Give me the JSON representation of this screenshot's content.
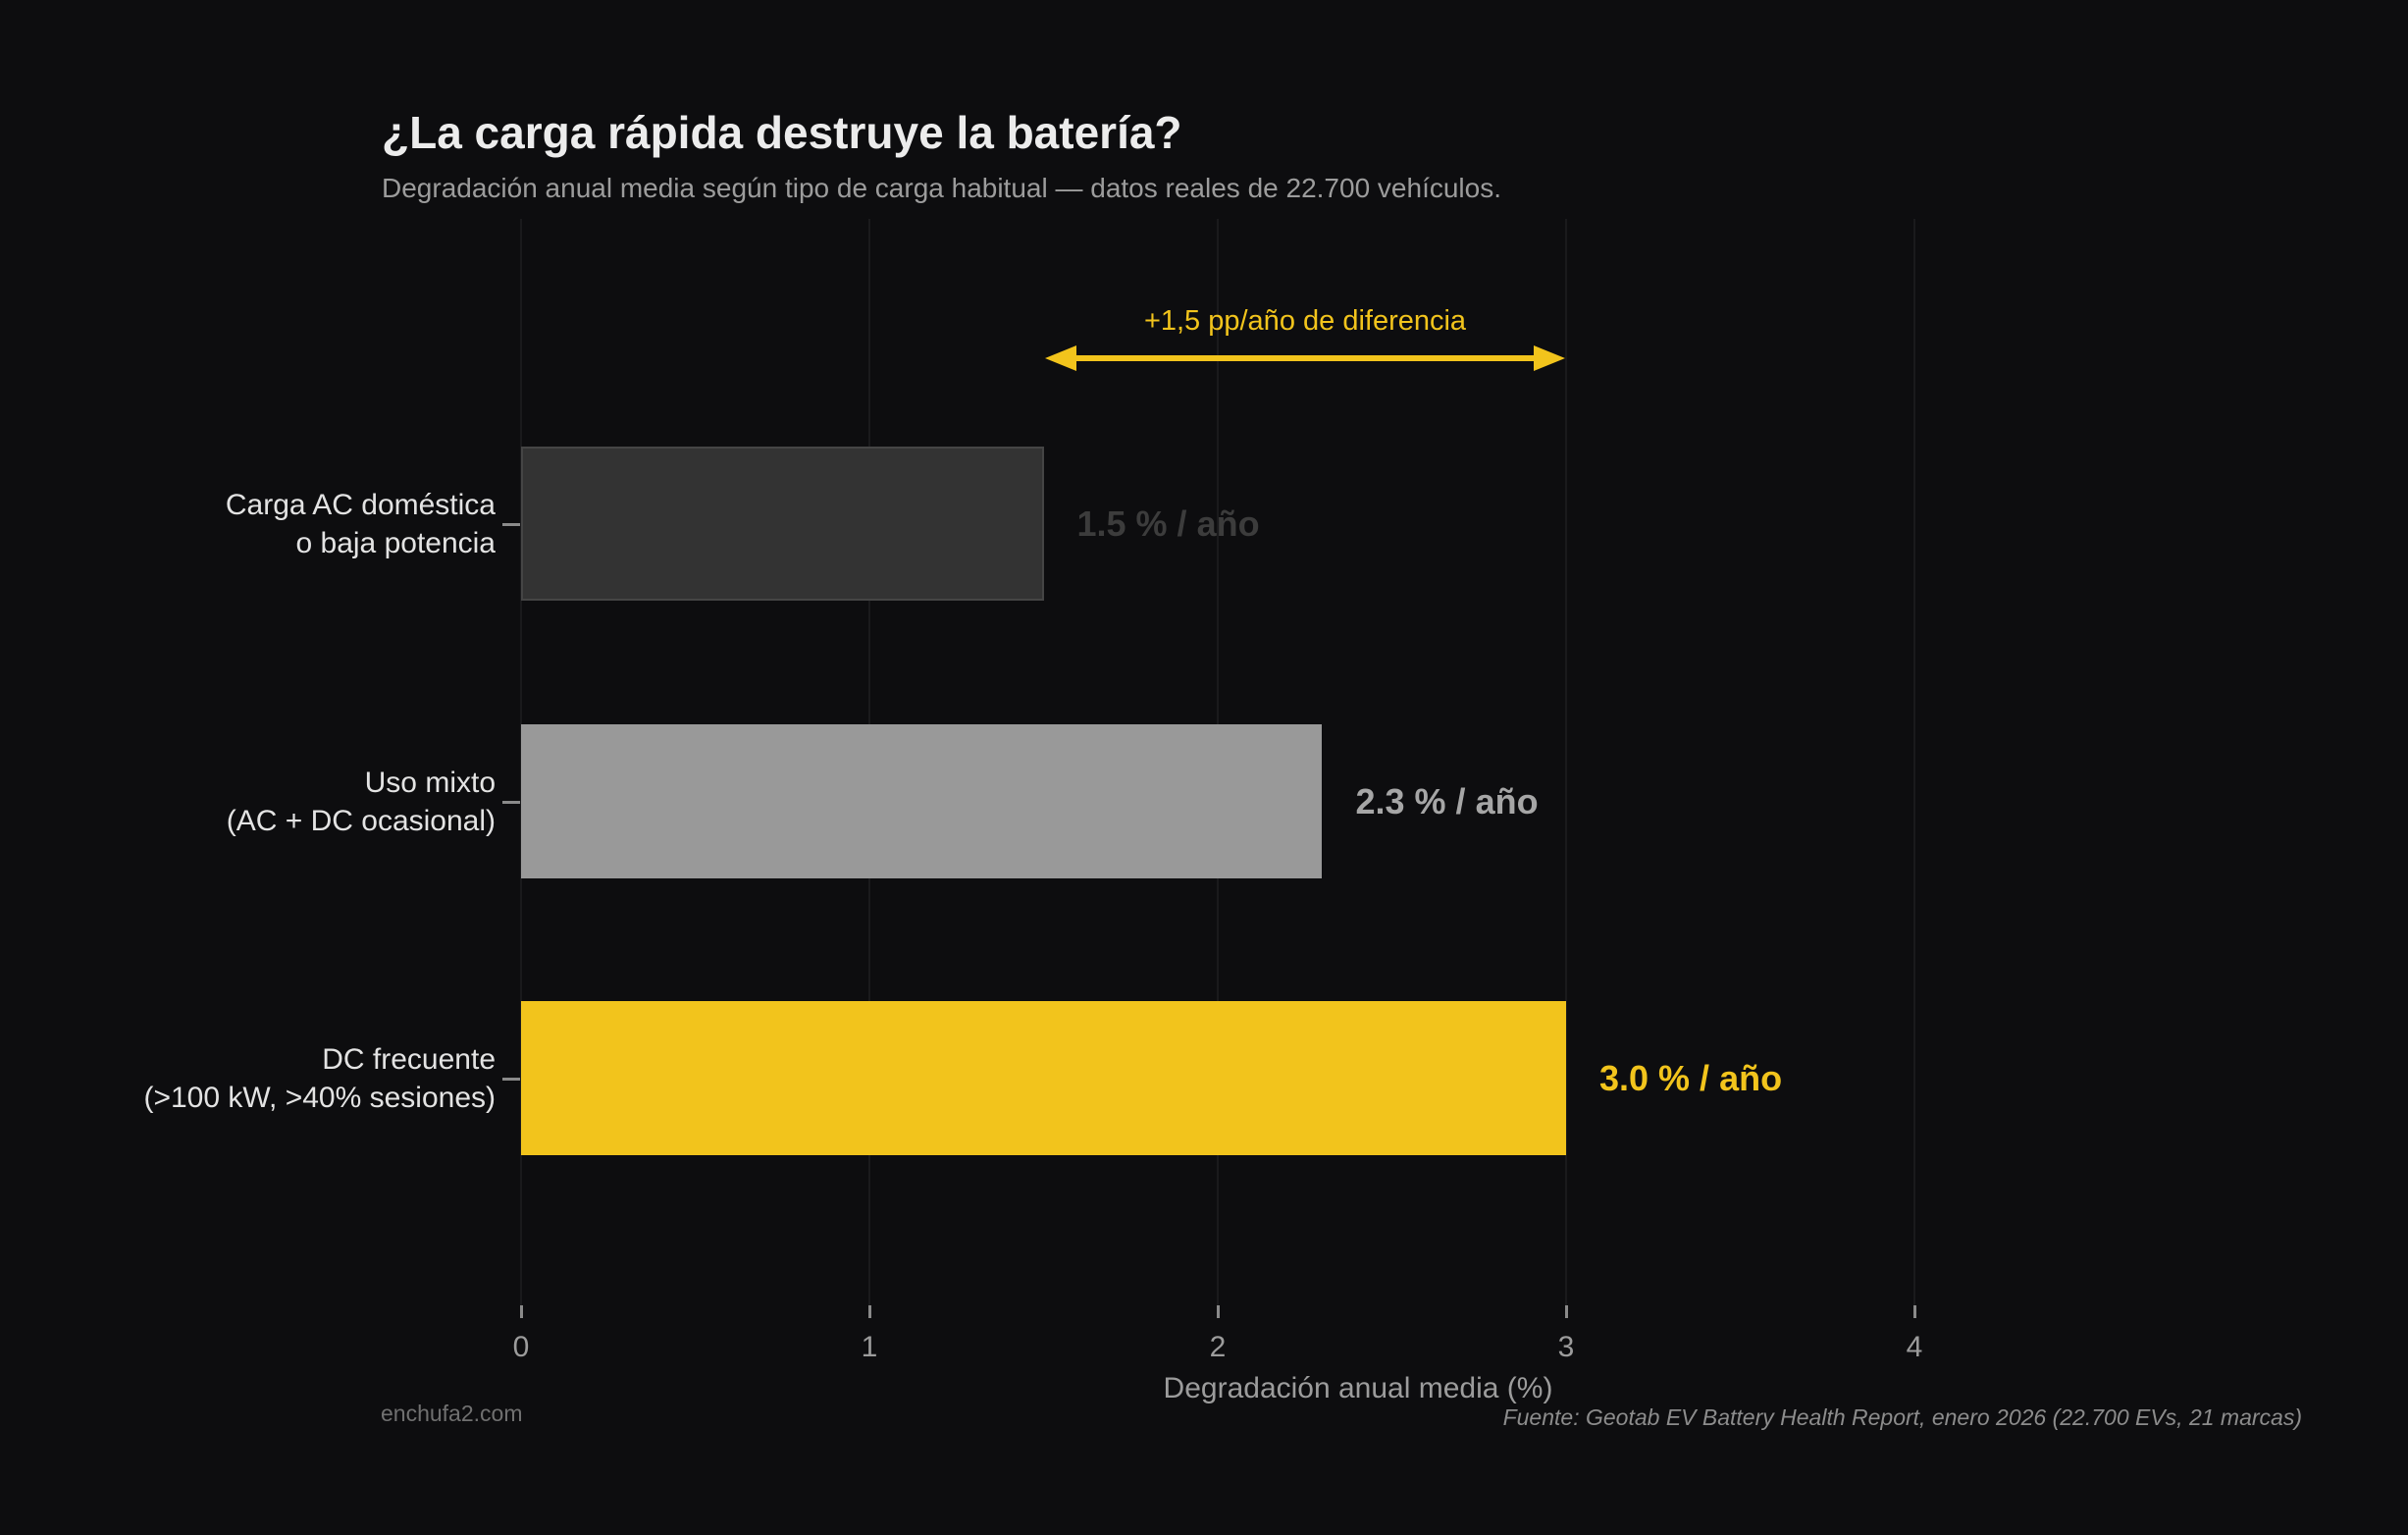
{
  "chart_data": {
    "type": "bar",
    "orientation": "horizontal",
    "title": "¿La carga rápida destruye la batería?",
    "subtitle": "Degradación anual media según tipo de carga habitual — datos reales de 22.700 vehículos.",
    "xlabel": "Degradación anual media (%)",
    "xticks": [
      "0",
      "1",
      "2",
      "3",
      "4"
    ],
    "xtick_values": [
      0,
      1,
      2,
      3,
      4
    ],
    "xlim": [
      0,
      4.3
    ],
    "grid": "vertical-major-only",
    "legend": "none",
    "rows": [
      {
        "label_lines": [
          "Carga AC doméstica",
          "o baja potencia"
        ],
        "value": 1.5,
        "value_label": "1.5 % / año",
        "fill": "#333333",
        "border": "#454545",
        "value_color": "#3c3c3c"
      },
      {
        "label_lines": [
          "Uso mixto",
          "(AC + DC ocasional)"
        ],
        "value": 2.3,
        "value_label": "2.3 % / año",
        "fill": "#999999",
        "border": "#999999",
        "value_color": "#a6a6a6"
      },
      {
        "label_lines": [
          "DC frecuente",
          "(>100 kW, >40% sesiones)"
        ],
        "value": 3.0,
        "value_label": "3.0 % / año",
        "fill": "#f2c41c",
        "border": "#f2c41c",
        "value_color": "#f2c41c"
      }
    ],
    "annotation": {
      "text": "+1,5 pp/año de diferencia",
      "from": 1.5,
      "to": 3.0,
      "color": "#f2c41c"
    },
    "caption": "Fuente: Geotab EV Battery Health Report, enero 2026 (22.700 EVs, 21 marcas)",
    "footer_left": "enchufa2.com",
    "colors": {
      "background": "#0d0d0f",
      "grid": "#1a1a1c",
      "title": "#ececec",
      "subtitle": "#9c9c9c",
      "axis_text": "#9c9c9c",
      "category_text": "#e3e3e3",
      "tick_mark": "#8a8a8a",
      "caption": "#8c8c8c",
      "footer": "#707070",
      "accent": "#f2c41c"
    }
  }
}
